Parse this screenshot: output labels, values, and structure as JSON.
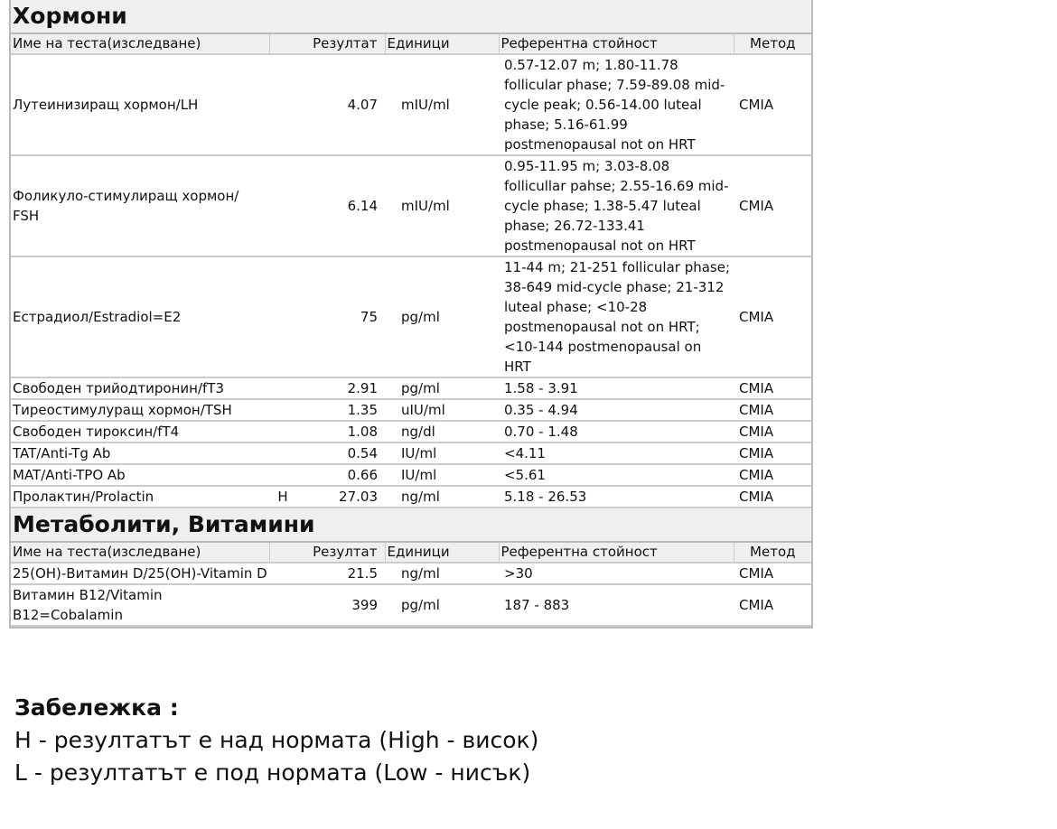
{
  "sections": [
    {
      "title": "Хормони",
      "headers": {
        "name": "Име на теста(изследване)",
        "result": "Резултат",
        "units": "Единици",
        "ref": "Референтна стойност",
        "method": "Метод"
      },
      "rows": [
        {
          "name": "Лутеинизиращ хормон/LH",
          "flag": "",
          "result": "4.07",
          "units": "mIU/ml",
          "ref": " 0.57-12.07 m; 1.80-11.78 follicular phase; 7.59-89.08 mid-cycle peak; 0.56-14.00 luteal phase; 5.16-61.99 postmenopausal not on HRT",
          "method": "CMIA"
        },
        {
          "name": "Фоликуло-стимулиращ хормон/ FSH",
          "flag": "",
          "result": "6.14",
          "units": "mIU/ml",
          "ref": " 0.95-11.95 m; 3.03-8.08 follicullar pahse; 2.55-16.69 mid-cycle phase; 1.38-5.47 luteal phase; 26.72-133.41 postmenopausal not on HRT",
          "method": "CMIA"
        },
        {
          "name": "Естрадиол/Estradiol=E2",
          "flag": "",
          "result": "75",
          "units": "pg/ml",
          "ref": " 11-44 m; 21-251 follicular phase; 38-649 mid-cycle phase; 21-312 luteal phase; <10-28 postmenopausal not on HRT; <10-144 postmenopausal on HRT",
          "method": "CMIA"
        },
        {
          "name": "Свободен трийодтиронин/fT3",
          "flag": "",
          "result": "2.91",
          "units": "pg/ml",
          "ref": "1.58 - 3.91",
          "method": "CMIA"
        },
        {
          "name": "Тиреостимулуращ хормон/TSH",
          "flag": "",
          "result": "1.35",
          "units": "uIU/ml",
          "ref": "0.35 - 4.94",
          "method": "CMIA"
        },
        {
          "name": "Свободен тироксин/fT4",
          "flag": "",
          "result": "1.08",
          "units": "ng/dl",
          "ref": "0.70 - 1.48",
          "method": "CMIA"
        },
        {
          "name": "TAT/Anti-Tg Ab",
          "flag": "",
          "result": "0.54",
          "units": "IU/ml",
          "ref": "<4.11",
          "method": "CMIA"
        },
        {
          "name": "MAT/Anti-TPO Ab",
          "flag": "",
          "result": "0.66",
          "units": "IU/ml",
          "ref": "<5.61",
          "method": "CMIA"
        },
        {
          "name": "Пролактин/Prolactin",
          "flag": "H",
          "result": "27.03",
          "units": "ng/ml",
          "ref": "5.18 - 26.53",
          "method": "CMIA"
        }
      ]
    },
    {
      "title": "Метаболити, Витамини",
      "headers": {
        "name": "Име на теста(изследване)",
        "result": "Резултат",
        "units": "Единици",
        "ref": "Референтна стойност",
        "method": "Метод"
      },
      "rows": [
        {
          "name": "25(OH)-Витамин D/25(OH)-Vitamin D",
          "flag": "",
          "result": "21.5",
          "units": "ng/ml",
          "ref": ">30",
          "method": "CMIA"
        },
        {
          "name": "Витамин B12/Vitamin B12=Cobalamin",
          "flag": "",
          "result": "399",
          "units": "pg/ml",
          "ref": "187 - 883",
          "method": "CMIA"
        }
      ]
    }
  ],
  "note": {
    "title": "Забележка :",
    "lines": [
      "H - резултатът е над нормата (High - висок)",
      "L - резултатът е под нормата (Low - нисък)"
    ]
  }
}
